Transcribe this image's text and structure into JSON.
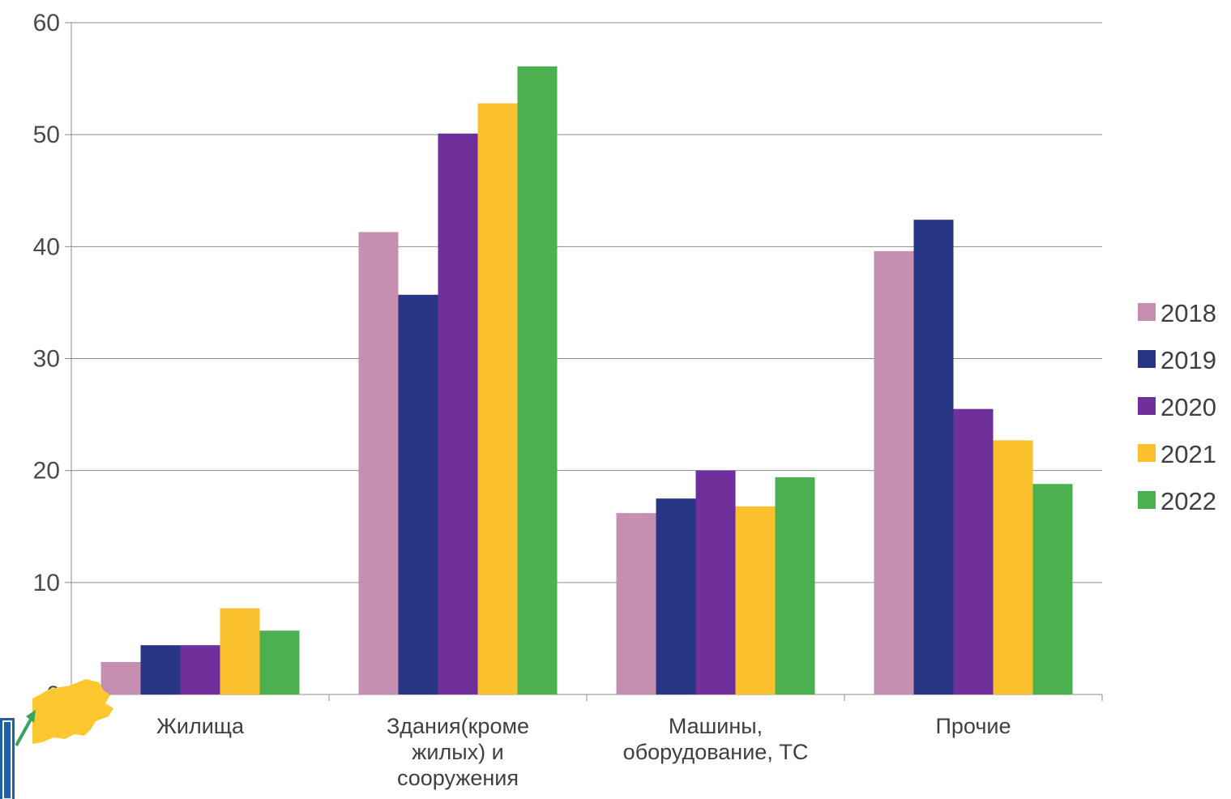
{
  "chart_data": {
    "type": "bar",
    "categories": [
      [
        "Жилища"
      ],
      [
        "Здания(кроме",
        "жилых) и",
        "сооружения"
      ],
      [
        "Машины,",
        "оборудование, ТС"
      ],
      [
        "Прочие"
      ]
    ],
    "series": [
      {
        "name": "2018",
        "color": "#c48fb0",
        "values": [
          2.9,
          41.3,
          16.2,
          39.6
        ]
      },
      {
        "name": "2019",
        "color": "#283583",
        "values": [
          4.4,
          35.7,
          17.5,
          42.4
        ]
      },
      {
        "name": "2020",
        "color": "#70309c",
        "values": [
          4.4,
          50.1,
          20.0,
          25.5
        ]
      },
      {
        "name": "2021",
        "color": "#fbc02d",
        "values": [
          7.7,
          52.8,
          16.8,
          22.7
        ]
      },
      {
        "name": "2022",
        "color": "#4caf50",
        "values": [
          5.7,
          56.1,
          19.4,
          18.8
        ]
      }
    ],
    "ylim": [
      0,
      60
    ],
    "yticks": [
      0,
      10,
      20,
      30,
      40,
      50,
      60
    ],
    "grid": true,
    "legend": "right",
    "title": "",
    "xlabel": "",
    "ylabel": ""
  },
  "logo": {
    "icon": "russia-map-logo-icon",
    "map_color": "#fdc72f",
    "box_color": "#1e5fa8",
    "arrow_color": "#3aa35b"
  }
}
